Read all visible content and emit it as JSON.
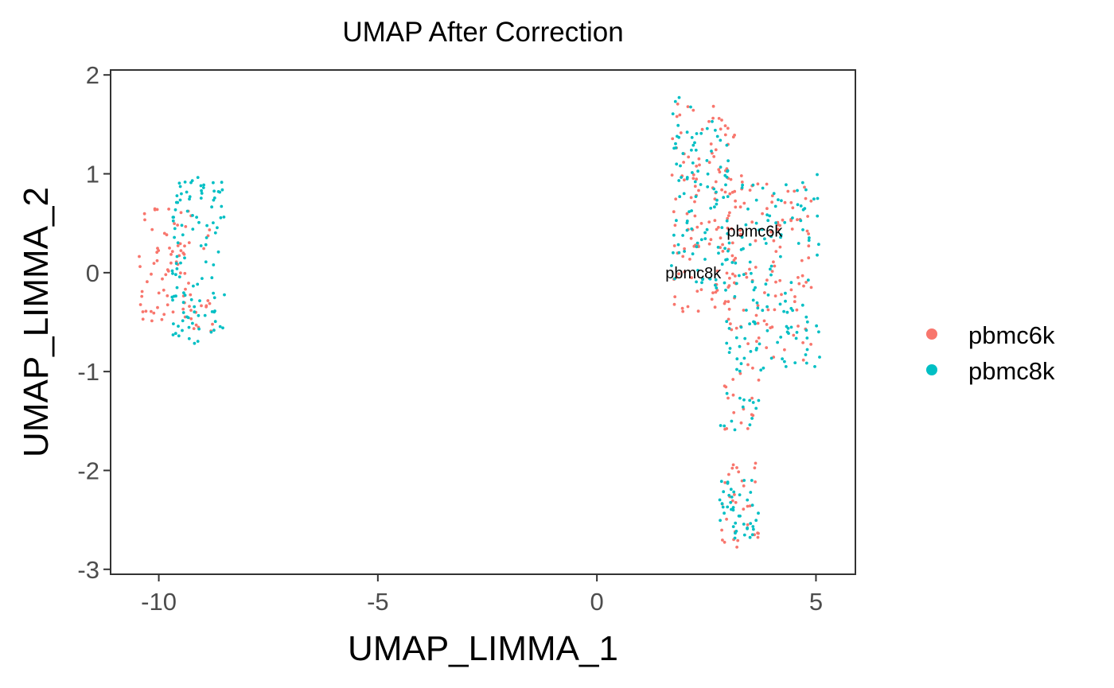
{
  "chart_data": {
    "type": "scatter",
    "title": "UMAP After Correction",
    "xlabel": "UMAP_LIMMA_1",
    "ylabel": "UMAP_LIMMA_2",
    "xlim": [
      -11.1,
      5.9
    ],
    "ylim": [
      -3.05,
      2.05
    ],
    "x_ticks": [
      -10,
      -5,
      0,
      5
    ],
    "y_ticks": [
      -3,
      -2,
      -1,
      0,
      1,
      2
    ],
    "x_tick_labels": [
      "-10",
      "-5",
      "0",
      "5"
    ],
    "y_tick_labels": [
      "-3",
      "-2",
      "-1",
      "0",
      "1",
      "2"
    ],
    "grid": false,
    "legend_position": "right",
    "series": [
      {
        "name": "pbmc6k",
        "color": "#F8766D",
        "clusters": [
          {
            "xr": [
              -10.45,
              -9.2
            ],
            "yr": [
              -0.5,
              0.65
            ],
            "n": 70
          },
          {
            "xr": [
              -9.3,
              -8.7
            ],
            "yr": [
              -0.6,
              0.5
            ],
            "n": 15
          },
          {
            "xr": [
              1.7,
              3.2
            ],
            "yr": [
              -0.4,
              1.75
            ],
            "n": 130
          },
          {
            "xr": [
              3.0,
              4.9
            ],
            "yr": [
              -0.9,
              1.0
            ],
            "n": 100
          },
          {
            "xr": [
              2.9,
              3.7
            ],
            "yr": [
              -1.6,
              -0.9
            ],
            "n": 18
          },
          {
            "xr": [
              2.8,
              3.7
            ],
            "yr": [
              -2.8,
              -1.9
            ],
            "n": 32
          }
        ]
      },
      {
        "name": "pbmc8k",
        "color": "#00BFC4",
        "clusters": [
          {
            "xr": [
              -9.7,
              -8.5
            ],
            "yr": [
              -0.75,
              0.97
            ],
            "n": 110
          },
          {
            "xr": [
              1.7,
              3.0
            ],
            "yr": [
              -0.2,
              1.8
            ],
            "n": 95
          },
          {
            "xr": [
              2.9,
              5.1
            ],
            "yr": [
              -1.0,
              1.0
            ],
            "n": 140
          },
          {
            "xr": [
              2.8,
              3.8
            ],
            "yr": [
              -1.7,
              -1.2
            ],
            "n": 14
          },
          {
            "xr": [
              2.8,
              3.7
            ],
            "yr": [
              -2.75,
              -2.1
            ],
            "n": 42
          }
        ]
      }
    ],
    "annotations": [
      {
        "text": "pbmc6k",
        "x": 3.6,
        "y": 0.42
      },
      {
        "text": "pbmc8k",
        "x": 2.2,
        "y": 0.0
      }
    ]
  }
}
